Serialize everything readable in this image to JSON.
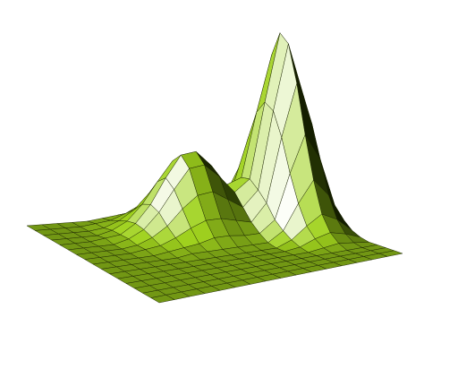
{
  "chart_data": {
    "type": "surface",
    "color": "#a0d21e",
    "z": [
      [
        0,
        0,
        0,
        0,
        0,
        0.01,
        0.02,
        0.03,
        0.05,
        0.05,
        0.04,
        0.02,
        0.03,
        0.06,
        0.09,
        0.06,
        0.02
      ],
      [
        0,
        0,
        0,
        0,
        0.01,
        0.02,
        0.05,
        0.09,
        0.12,
        0.12,
        0.1,
        0.06,
        0.06,
        0.14,
        0.21,
        0.15,
        0.05
      ],
      [
        0,
        0,
        0,
        0,
        0.01,
        0.04,
        0.09,
        0.17,
        0.23,
        0.24,
        0.19,
        0.12,
        0.12,
        0.27,
        0.4,
        0.28,
        0.09
      ],
      [
        0,
        0,
        0,
        0,
        0.02,
        0.06,
        0.14,
        0.25,
        0.35,
        0.36,
        0.29,
        0.19,
        0.19,
        0.43,
        0.64,
        0.45,
        0.15
      ],
      [
        0,
        0,
        0,
        0.01,
        0.02,
        0.07,
        0.16,
        0.29,
        0.4,
        0.41,
        0.33,
        0.22,
        0.25,
        0.58,
        0.87,
        0.62,
        0.2
      ],
      [
        0,
        0,
        0,
        0,
        0.02,
        0.06,
        0.14,
        0.25,
        0.35,
        0.36,
        0.29,
        0.2,
        0.26,
        0.65,
        1,
        0.71,
        0.23
      ],
      [
        0,
        0,
        0,
        0,
        0.01,
        0.04,
        0.09,
        0.17,
        0.23,
        0.24,
        0.19,
        0.14,
        0.22,
        0.62,
        0.96,
        0.68,
        0.22
      ],
      [
        0,
        0,
        0,
        0,
        0.01,
        0.02,
        0.05,
        0.09,
        0.12,
        0.12,
        0.1,
        0.08,
        0.17,
        0.5,
        0.77,
        0.55,
        0.18
      ],
      [
        0,
        0,
        0,
        0,
        0,
        0.01,
        0.02,
        0.03,
        0.05,
        0.05,
        0.04,
        0.04,
        0.1,
        0.33,
        0.52,
        0.38,
        0.12
      ],
      [
        0,
        0,
        0,
        0,
        0,
        0,
        0.01,
        0.01,
        0.01,
        0.01,
        0.01,
        0.01,
        0.06,
        0.19,
        0.3,
        0.21,
        0.07
      ],
      [
        0,
        0,
        0,
        0,
        0,
        0,
        0,
        0,
        0,
        0,
        0,
        0,
        0.03,
        0.09,
        0.14,
        0.1,
        0.03
      ],
      [
        0,
        0,
        0,
        0,
        0,
        0,
        0,
        0,
        0,
        0,
        0,
        0,
        0.01,
        0.04,
        0.06,
        0.04,
        0.01
      ],
      [
        0,
        0,
        0,
        0,
        0,
        0,
        0,
        0,
        0,
        0,
        0,
        0,
        0,
        0.01,
        0.02,
        0.01,
        0
      ],
      [
        0,
        0,
        0,
        0,
        0,
        0,
        0,
        0,
        0,
        0,
        0,
        0,
        0,
        0,
        0,
        0,
        0
      ],
      [
        0,
        0,
        0,
        0,
        0,
        0,
        0,
        0,
        0,
        0,
        0,
        0,
        0,
        0,
        0,
        0,
        0
      ],
      [
        0,
        0,
        0,
        0,
        0,
        0,
        0,
        0,
        0,
        0,
        0,
        0,
        0,
        0,
        0,
        0,
        0
      ],
      [
        0,
        0,
        0,
        0,
        0,
        0,
        0,
        0,
        0,
        0,
        0,
        0,
        0,
        0,
        0,
        0,
        0
      ]
    ]
  }
}
